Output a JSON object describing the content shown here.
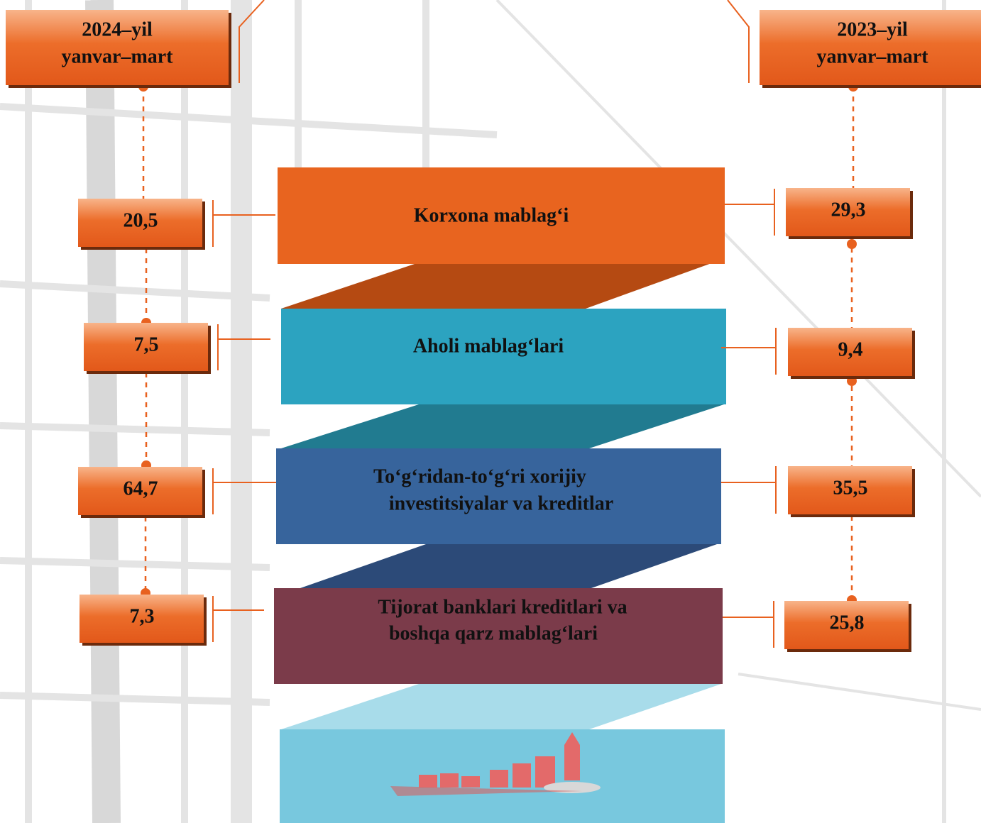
{
  "periods": [
    {
      "label_lines": [
        "2024–yil",
        "yanvar–mart"
      ],
      "values": [
        "20,5",
        "7,5",
        "64,7",
        "7,3"
      ]
    },
    {
      "label_lines": [
        "2023–yil",
        "yanvar–mart"
      ],
      "values": [
        "29,3",
        "9,4",
        "35,5",
        "25,8"
      ]
    }
  ],
  "sources": [
    {
      "lines": [
        "Korxona mablag‘i"
      ]
    },
    {
      "lines": [
        "Aholi mablag‘lari"
      ]
    },
    {
      "lines": [
        "To‘g‘ridan-to‘g‘ri xorijiy",
        "investitsiyalar va kreditlar"
      ]
    },
    {
      "lines": [
        "Tijorat banklari kreditlari va",
        "boshqa qarz mablag‘lari"
      ]
    }
  ]
}
